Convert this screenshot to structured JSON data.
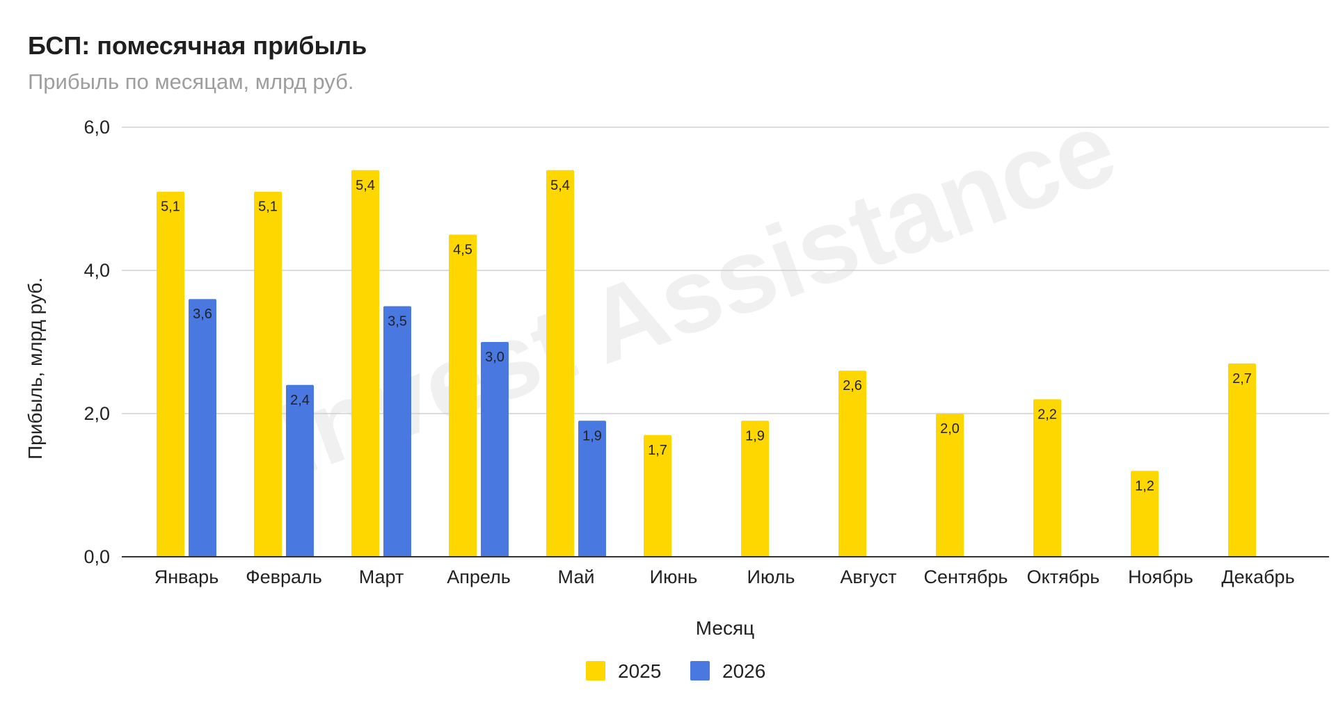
{
  "chart_data": {
    "type": "bar",
    "title": "БСП: помесячная прибыль",
    "subtitle": "Прибыль по месяцам, млрд руб.",
    "xlabel": "Месяц",
    "ylabel": "Прибыль, млрд руб.",
    "ylim": [
      0,
      6
    ],
    "yticks": [
      "0,0",
      "2,0",
      "4,0",
      "6,0"
    ],
    "ytick_values": [
      0,
      2,
      4,
      6
    ],
    "grid": true,
    "legend_position": "bottom",
    "watermark": "Invest Assistance",
    "categories": [
      "Январь",
      "Февраль",
      "Март",
      "Апрель",
      "Май",
      "Июнь",
      "Июль",
      "Август",
      "Сентябрь",
      "Октябрь",
      "Ноябрь",
      "Декабрь"
    ],
    "series": [
      {
        "name": "2025",
        "color": "#FFD700",
        "values": [
          5.1,
          5.1,
          5.4,
          4.5,
          5.4,
          1.7,
          1.9,
          2.6,
          2.0,
          2.2,
          1.2,
          2.7
        ],
        "labels": [
          "5,1",
          "5,1",
          "5,4",
          "4,5",
          "5,4",
          "1,7",
          "1,9",
          "2,6",
          "2,0",
          "2,2",
          "1,2",
          "2,7"
        ]
      },
      {
        "name": "2026",
        "color": "#4A78E1",
        "values": [
          3.6,
          2.4,
          3.5,
          3.0,
          1.9,
          null,
          null,
          null,
          null,
          null,
          null,
          null
        ],
        "labels": [
          "3,6",
          "2,4",
          "3,5",
          "3,0",
          "1,9",
          "",
          "",
          "",
          "",
          "",
          "",
          ""
        ]
      }
    ]
  }
}
